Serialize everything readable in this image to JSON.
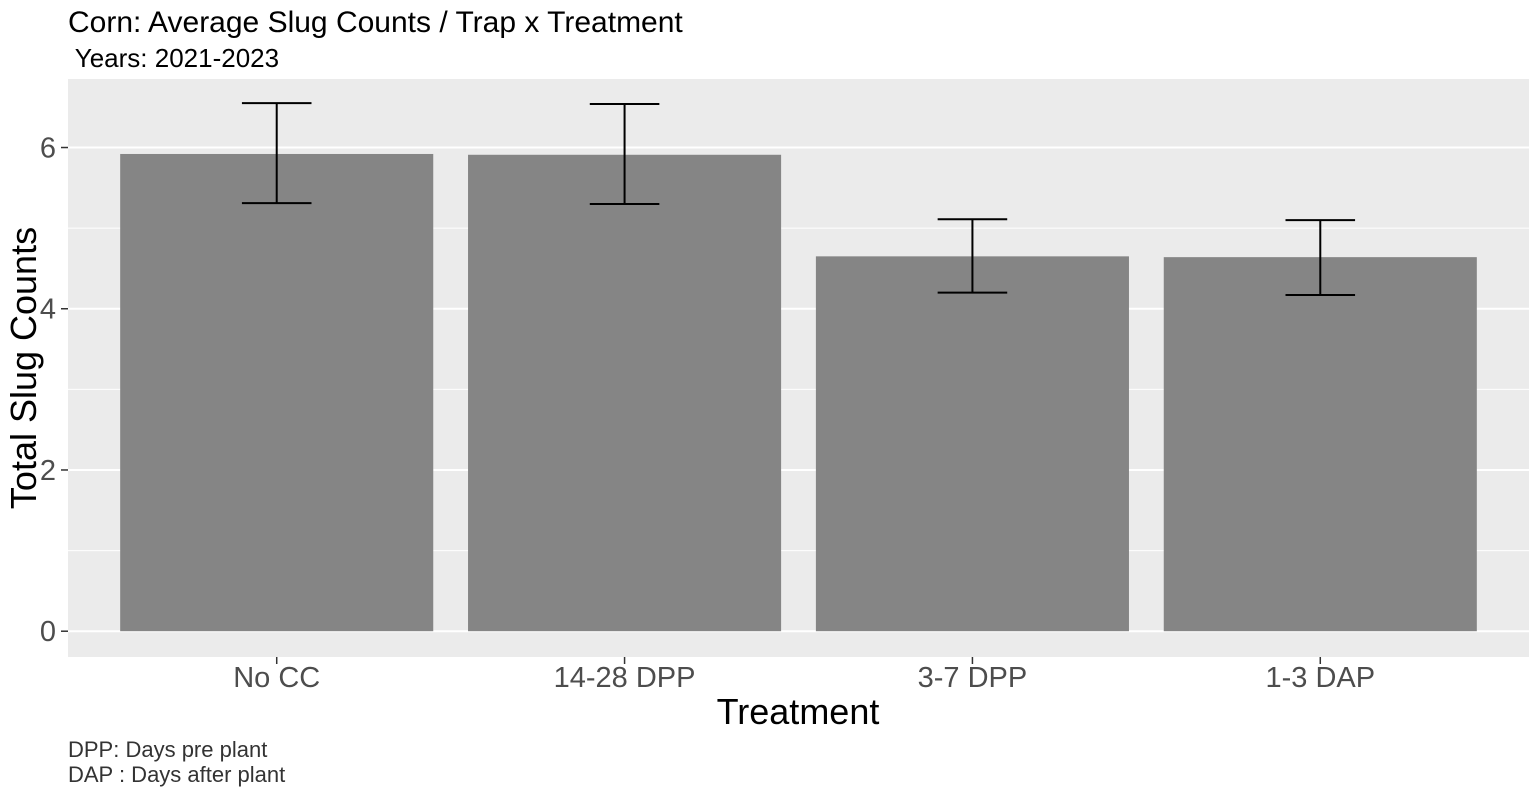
{
  "chart_data": {
    "type": "bar",
    "title": "Corn: Average Slug Counts / Trap x Treatment",
    "subtitle": " Years: 2021-2023",
    "xlabel": "Treatment",
    "ylabel": "Total Slug Counts",
    "categories": [
      "No CC",
      "14-28 DPP",
      "3-7 DPP",
      "1-3 DAP"
    ],
    "values": [
      5.92,
      5.91,
      4.65,
      4.64
    ],
    "error_low": [
      5.31,
      5.3,
      4.2,
      4.17
    ],
    "error_high": [
      6.55,
      6.54,
      5.11,
      5.1
    ],
    "ylim": [
      -0.32,
      6.85
    ],
    "yticks": [
      0,
      2,
      4,
      6
    ],
    "grid": true,
    "legend": "none",
    "caption": [
      "DPP: Days pre plant",
      "DAP : Days after plant"
    ],
    "colors": {
      "bar": "#858585",
      "panel": "#ebebeb",
      "grid": "#ffffff",
      "errorbar": "#000000"
    }
  }
}
